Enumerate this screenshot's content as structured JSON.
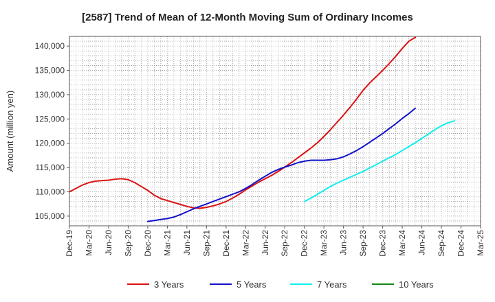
{
  "chart_data": {
    "type": "line",
    "title": "[2587]  Trend of Mean of 12-Month Moving Sum of Ordinary Incomes",
    "xlabel": "",
    "ylabel": "Amount (million yen)",
    "ylim": [
      103000,
      142000
    ],
    "yticks": [
      105000,
      110000,
      115000,
      120000,
      125000,
      130000,
      135000,
      140000
    ],
    "ytick_labels": [
      "105,000",
      "110,000",
      "115,000",
      "120,000",
      "125,000",
      "130,000",
      "135,000",
      "140,000"
    ],
    "x_start_month": "2019-12",
    "x_end_month": "2025-03",
    "x_tick_labels": [
      "Dec-19",
      "Mar-20",
      "Jun-20",
      "Sep-20",
      "Dec-20",
      "Mar-21",
      "Jun-21",
      "Sep-21",
      "Dec-21",
      "Mar-22",
      "Jun-22",
      "Sep-22",
      "Dec-22",
      "Mar-23",
      "Jun-23",
      "Sep-23",
      "Dec-23",
      "Mar-24",
      "Jun-24",
      "Sep-24",
      "Dec-24",
      "Mar-25"
    ],
    "grid": true,
    "legend_position": "bottom",
    "series": [
      {
        "name": "3 Years",
        "color": "#dd1111",
        "start_month": "2019-12",
        "values": [
          110000,
          110700,
          111400,
          111900,
          112200,
          112300,
          112400,
          112600,
          112700,
          112500,
          111900,
          111100,
          110300,
          109300,
          108600,
          108200,
          107800,
          107400,
          107000,
          106700,
          106600,
          106800,
          107100,
          107500,
          108000,
          108700,
          109500,
          110400,
          111200,
          112000,
          112700,
          113400,
          114200,
          115100,
          116000,
          117000,
          118000,
          119000,
          120100,
          121400,
          122800,
          124300,
          125800,
          127400,
          129100,
          130900,
          132400,
          133700,
          135000,
          136400,
          137900,
          139500,
          141000,
          141800
        ]
      },
      {
        "name": "5 Years",
        "color": "#1111cc",
        "start_month": "2020-12",
        "values": [
          103900,
          104100,
          104300,
          104500,
          104800,
          105300,
          105900,
          106500,
          107000,
          107500,
          108000,
          108500,
          109000,
          109500,
          110000,
          110700,
          111500,
          112400,
          113200,
          114000,
          114600,
          115100,
          115500,
          116000,
          116300,
          116500,
          116500,
          116500,
          116600,
          116800,
          117200,
          117800,
          118500,
          119300,
          120200,
          121100,
          122000,
          123000,
          124000,
          125100,
          126100,
          127200
        ]
      },
      {
        "name": "7 Years",
        "color": "#11eeee",
        "start_month": "2022-12",
        "values": [
          108000,
          108700,
          109500,
          110300,
          111100,
          111800,
          112400,
          113000,
          113600,
          114200,
          114900,
          115600,
          116300,
          117000,
          117700,
          118500,
          119300,
          120100,
          121000,
          121900,
          122800,
          123600,
          124200,
          124600
        ]
      },
      {
        "name": "10 Years",
        "color": "#118811",
        "start_month": "2024-12",
        "values": []
      }
    ]
  }
}
